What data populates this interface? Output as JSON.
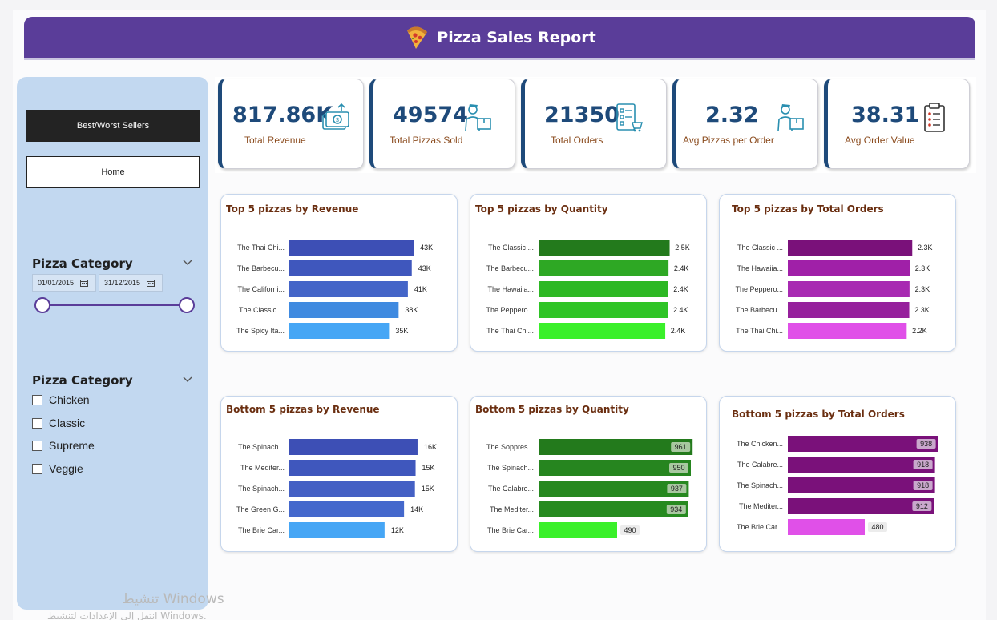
{
  "header": {
    "title": "Pizza Sales Report",
    "icon": "pizza-icon"
  },
  "sidebar": {
    "best_worst_label": "Best/Worst Sellers",
    "home_label": "Home",
    "date_slicer": {
      "title": "Pizza Category",
      "start": "01/01/2015",
      "end": "31/12/2015"
    },
    "category_slicer": {
      "title": "Pizza Category",
      "options": [
        "Chicken",
        "Classic",
        "Supreme",
        "Veggie"
      ]
    }
  },
  "kpis": [
    {
      "value": "817.86K",
      "label": "Total Revenue",
      "icon": "money-icon"
    },
    {
      "value": "49574",
      "label": "Total Pizzas Sold",
      "icon": "delivery-person-icon"
    },
    {
      "value": "21350",
      "label": "Total Orders",
      "icon": "order-checklist-icon"
    },
    {
      "value": "2.32",
      "label": "Avg Pizzas per Order",
      "icon": "delivery-person-icon"
    },
    {
      "value": "38.31",
      "label": "Avg Order Value",
      "icon": "clipboard-icon"
    }
  ],
  "colors": {
    "header": "#5a3d99",
    "kpi_accent": "#1e4a7a",
    "title_text": "#6a2e10"
  },
  "chart_data": [
    {
      "type": "bar",
      "title": "Top 5 pizzas by Revenue",
      "categories": [
        "The Thai Chi...",
        "The Barbecu...",
        "The Californi...",
        "The Classic ...",
        "The Spicy Ita..."
      ],
      "values": [
        43434,
        42768,
        41410,
        38180,
        34831
      ],
      "labels": [
        "43K",
        "43K",
        "41K",
        "38K",
        "35K"
      ],
      "colors": [
        "#3d4fb5",
        "#3f57bd",
        "#4465c8",
        "#3f8ae0",
        "#46a6f5"
      ],
      "xlim": [
        0,
        56000
      ]
    },
    {
      "type": "bar",
      "title": "Top 5 pizzas by Quantity",
      "categories": [
        "The Classic ...",
        "The Barbecu...",
        "The Hawaiia...",
        "The Peppero...",
        "The Thai Chi..."
      ],
      "values": [
        2453,
        2432,
        2422,
        2418,
        2371
      ],
      "labels": [
        "2.5K",
        "2.4K",
        "2.4K",
        "2.4K",
        "2.4K"
      ],
      "colors": [
        "#237a1c",
        "#2ea824",
        "#2db824",
        "#2ec426",
        "#3af02a"
      ],
      "xlim": [
        0,
        3000
      ]
    },
    {
      "type": "bar",
      "title": "Top 5 pizzas by Total Orders",
      "categories": [
        "The Classic ...",
        "The Hawaiia...",
        "The Peppero...",
        "The Barbecu...",
        "The Thai Chi..."
      ],
      "values": [
        2329,
        2280,
        2278,
        2273,
        2225
      ],
      "labels": [
        "2.3K",
        "2.3K",
        "2.3K",
        "2.3K",
        "2.2K"
      ],
      "colors": [
        "#7a117a",
        "#a020a8",
        "#a82ab2",
        "#96209c",
        "#e050e8"
      ],
      "xlim": [
        0,
        3000
      ]
    },
    {
      "type": "bar",
      "title": "Bottom 5 pizzas by Revenue",
      "categories": [
        "The Spinach...",
        "The Mediter...",
        "The Spinach...",
        "The Green G...",
        "The Brie Car..."
      ],
      "values": [
        15596,
        15360,
        15278,
        13955,
        11588
      ],
      "labels": [
        "16K",
        "15K",
        "15K",
        "14K",
        "12K"
      ],
      "colors": [
        "#3d4fb5",
        "#3f57bd",
        "#4460c4",
        "#4468cc",
        "#46a6f5"
      ],
      "xlim": [
        0,
        19500
      ]
    },
    {
      "type": "bar",
      "title": "Bottom 5 pizzas by Quantity",
      "categories": [
        "The Soppres...",
        "The Spinach...",
        "The Calabre...",
        "The Mediter...",
        "The Brie Car..."
      ],
      "values": [
        961,
        950,
        937,
        934,
        490
      ],
      "labels": [
        "961",
        "950",
        "937",
        "934",
        "490"
      ],
      "colors": [
        "#237a1c",
        "#26851f",
        "#26881f",
        "#268a1f",
        "#3af02a"
      ],
      "xlim": [
        0,
        1000
      ]
    },
    {
      "type": "bar",
      "title": "Bottom 5 pizzas by Total Orders",
      "categories": [
        "The Chicken...",
        "The Calabre...",
        "The Spinach...",
        "The Mediter...",
        "The Brie Car..."
      ],
      "values": [
        938,
        918,
        918,
        912,
        480
      ],
      "labels": [
        "938",
        "918",
        "918",
        "912",
        "480"
      ],
      "colors": [
        "#7a117a",
        "#7a117a",
        "#7a117a",
        "#7a117a",
        "#e050e8"
      ],
      "xlim": [
        0,
        1000
      ]
    }
  ],
  "watermark": {
    "line1": "تنشيط Windows",
    "line2": "انتقل إلى الإعدادات لتنشيط Windows."
  }
}
